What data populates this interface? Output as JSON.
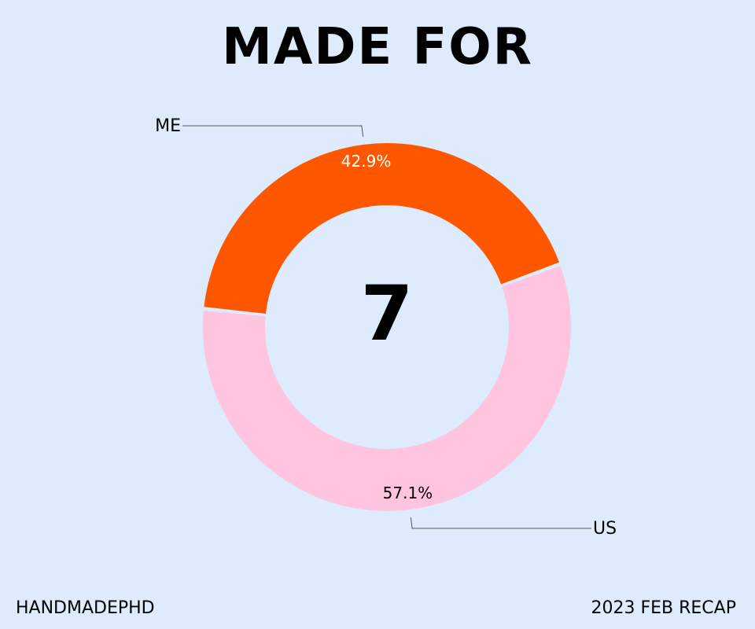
{
  "title": "MADE FOR",
  "center_value": "7",
  "footer": {
    "left": "HANDMADEPHD",
    "right": "2023 FEB RECAP"
  },
  "chart_data": {
    "type": "pie",
    "style": "donut",
    "total": 7,
    "slices": [
      {
        "label": "ME",
        "value": 3,
        "percent_label": "42.9%",
        "color": "#ff5700",
        "label_color": "#ffffff"
      },
      {
        "label": "US",
        "value": 4,
        "percent_label": "57.1%",
        "color": "#ffc5e0",
        "label_color": "#000000"
      }
    ]
  }
}
